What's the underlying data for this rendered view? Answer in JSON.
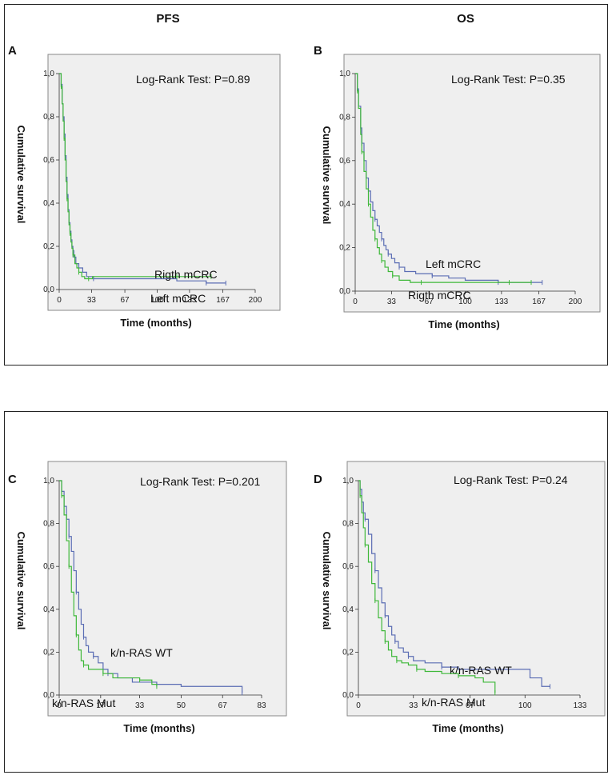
{
  "figure": {
    "panels": [
      "A",
      "B",
      "C",
      "D"
    ]
  },
  "colors": {
    "series_blue": "#5b6db4",
    "series_green": "#3fb83a",
    "plot_background": "#efefef",
    "axis": "#333333"
  },
  "chart_data": [
    {
      "panel": "A",
      "type": "line",
      "title": "PFS",
      "xlabel": "Time (months)",
      "ylabel": "Cumulative survival",
      "xlim": [
        0,
        200
      ],
      "ylim": [
        0,
        1.0
      ],
      "xticks": [
        "0",
        "33",
        "67",
        "100",
        "133",
        "167",
        "200"
      ],
      "xtick_values": [
        0,
        33,
        67,
        100,
        133,
        167,
        200
      ],
      "yticks": [
        "0,0",
        "0,2",
        "0,4",
        "0,6",
        "0,8",
        "1,0"
      ],
      "ytick_values": [
        0,
        0.2,
        0.4,
        0.6,
        0.8,
        1.0
      ],
      "annotation": "Log-Rank Test: P=0.89",
      "series": [
        {
          "name": "Left mCRC",
          "color": "#5b6db4",
          "x": [
            0,
            2,
            3,
            4,
            5,
            6,
            7,
            8,
            9,
            10,
            11,
            12,
            13,
            14,
            15,
            17,
            20,
            24,
            28,
            35,
            60,
            120,
            150,
            170
          ],
          "y": [
            1.0,
            0.95,
            0.86,
            0.8,
            0.72,
            0.62,
            0.52,
            0.44,
            0.37,
            0.31,
            0.27,
            0.23,
            0.2,
            0.18,
            0.15,
            0.12,
            0.1,
            0.08,
            0.06,
            0.05,
            0.05,
            0.04,
            0.03,
            0.03
          ],
          "label": "Left mCRC"
        },
        {
          "name": "Rigth mCRC",
          "color": "#3fb83a",
          "x": [
            0,
            2,
            3,
            4,
            5,
            6,
            7,
            8,
            9,
            10,
            11,
            12,
            13,
            14,
            16,
            18,
            20,
            23,
            26,
            30,
            34,
            60,
            120,
            155
          ],
          "y": [
            1.0,
            0.94,
            0.86,
            0.78,
            0.7,
            0.6,
            0.5,
            0.42,
            0.36,
            0.3,
            0.26,
            0.22,
            0.19,
            0.16,
            0.12,
            0.1,
            0.08,
            0.06,
            0.05,
            0.05,
            0.06,
            0.06,
            0.06,
            0.06
          ],
          "label": "Rigth mCRC"
        }
      ]
    },
    {
      "panel": "B",
      "type": "line",
      "title": "OS",
      "xlabel": "Time (months)",
      "ylabel": "Cumulative survival",
      "xlim": [
        0,
        200
      ],
      "ylim": [
        0,
        1.0
      ],
      "xticks": [
        "0",
        "33",
        "67",
        "100",
        "133",
        "167",
        "200"
      ],
      "xtick_values": [
        0,
        33,
        67,
        100,
        133,
        167,
        200
      ],
      "yticks": [
        "0,0",
        "0,2",
        "0,4",
        "0,6",
        "0,8",
        "1,0"
      ],
      "ytick_values": [
        0,
        0.2,
        0.4,
        0.6,
        0.8,
        1.0
      ],
      "annotation": "Log-Rank Test: P=0.35",
      "series": [
        {
          "name": "Left mCRC",
          "color": "#5b6db4",
          "x": [
            0,
            2,
            3,
            5,
            6,
            8,
            10,
            12,
            14,
            16,
            18,
            20,
            22,
            24,
            26,
            28,
            30,
            33,
            36,
            40,
            45,
            55,
            70,
            85,
            100,
            130,
            150,
            170
          ],
          "y": [
            1.0,
            0.93,
            0.85,
            0.75,
            0.68,
            0.6,
            0.52,
            0.46,
            0.41,
            0.37,
            0.33,
            0.3,
            0.27,
            0.24,
            0.21,
            0.19,
            0.17,
            0.15,
            0.13,
            0.11,
            0.09,
            0.08,
            0.07,
            0.06,
            0.05,
            0.04,
            0.04,
            0.04
          ],
          "label": "Left mCRC"
        },
        {
          "name": "Rigth mCRC",
          "color": "#3fb83a",
          "x": [
            0,
            2,
            3,
            5,
            6,
            8,
            10,
            12,
            14,
            16,
            18,
            20,
            22,
            24,
            27,
            30,
            34,
            40,
            50,
            60,
            80,
            100,
            140,
            160
          ],
          "y": [
            1.0,
            0.92,
            0.84,
            0.72,
            0.64,
            0.55,
            0.47,
            0.4,
            0.34,
            0.28,
            0.24,
            0.2,
            0.17,
            0.14,
            0.11,
            0.09,
            0.07,
            0.05,
            0.04,
            0.04,
            0.04,
            0.04,
            0.04,
            0.04
          ],
          "label": "Rigth mCRC"
        }
      ]
    },
    {
      "panel": "C",
      "type": "line",
      "title": "PFS",
      "xlabel": "Time (months)",
      "ylabel": "Cumulative survival",
      "xlim": [
        0,
        83
      ],
      "ylim": [
        0,
        1.0
      ],
      "xticks": [
        "0",
        "17",
        "33",
        "50",
        "67",
        "83"
      ],
      "xtick_values": [
        0,
        17,
        33,
        50,
        67,
        83
      ],
      "yticks": [
        "0,0",
        "0,2",
        "0,4",
        "0,6",
        "0,8",
        "1,0"
      ],
      "ytick_values": [
        0,
        0.2,
        0.4,
        0.6,
        0.8,
        1.0
      ],
      "annotation": "Log-Rank Test: P=0.201",
      "series": [
        {
          "name": "k/n-RAS WT",
          "color": "#5b6db4",
          "x": [
            0,
            1,
            2,
            3,
            4,
            5,
            6,
            7,
            8,
            9,
            10,
            11,
            12,
            14,
            16,
            18,
            20,
            24,
            30,
            40,
            50,
            60,
            75
          ],
          "y": [
            1.0,
            0.95,
            0.88,
            0.82,
            0.74,
            0.67,
            0.58,
            0.48,
            0.4,
            0.33,
            0.27,
            0.23,
            0.2,
            0.18,
            0.15,
            0.12,
            0.1,
            0.08,
            0.06,
            0.05,
            0.04,
            0.04,
            0.01
          ],
          "label": "k/n-RAS WT"
        },
        {
          "name": "k/n-RAS Mut",
          "color": "#3fb83a",
          "x": [
            0,
            1,
            2,
            3,
            4,
            5,
            6,
            7,
            8,
            9,
            10,
            12,
            14,
            18,
            22,
            27,
            33,
            38,
            40
          ],
          "y": [
            1.0,
            0.93,
            0.84,
            0.72,
            0.6,
            0.48,
            0.37,
            0.28,
            0.21,
            0.16,
            0.14,
            0.12,
            0.12,
            0.1,
            0.08,
            0.08,
            0.07,
            0.05,
            0.04
          ],
          "label": "k/n-RAS Mut"
        }
      ]
    },
    {
      "panel": "D",
      "type": "line",
      "title": "OS",
      "xlabel": "Time (months)",
      "ylabel": "Cumulative survival",
      "xlim": [
        0,
        133
      ],
      "ylim": [
        0,
        1.0
      ],
      "xticks": [
        "0",
        "33",
        "67",
        "100",
        "133"
      ],
      "xtick_values": [
        0,
        33,
        67,
        100,
        133
      ],
      "yticks": [
        "0,0",
        "0,2",
        "0,4",
        "0,6",
        "0,8",
        "1,0"
      ],
      "ytick_values": [
        0,
        0.2,
        0.4,
        0.6,
        0.8,
        1.0
      ],
      "annotation": "Log-Rank Test: P=0.24",
      "series": [
        {
          "name": "k/n-RAS WT",
          "color": "#5b6db4",
          "x": [
            0,
            1,
            2,
            3,
            4,
            6,
            8,
            10,
            12,
            14,
            16,
            18,
            20,
            22,
            24,
            27,
            30,
            33,
            40,
            50,
            60,
            70,
            90,
            103,
            110,
            115
          ],
          "y": [
            1.0,
            0.96,
            0.9,
            0.85,
            0.82,
            0.75,
            0.66,
            0.58,
            0.5,
            0.43,
            0.37,
            0.32,
            0.28,
            0.25,
            0.22,
            0.2,
            0.18,
            0.16,
            0.15,
            0.13,
            0.12,
            0.12,
            0.12,
            0.08,
            0.04,
            0.04
          ],
          "label": "k/n-RAS WT"
        },
        {
          "name": "k/n-RAS Mut",
          "color": "#3fb83a",
          "x": [
            0,
            1,
            2,
            3,
            4,
            6,
            8,
            10,
            12,
            14,
            16,
            18,
            20,
            23,
            26,
            30,
            35,
            40,
            50,
            60,
            70,
            75,
            82
          ],
          "y": [
            1.0,
            0.93,
            0.85,
            0.78,
            0.7,
            0.62,
            0.52,
            0.44,
            0.36,
            0.3,
            0.25,
            0.21,
            0.18,
            0.16,
            0.15,
            0.14,
            0.12,
            0.11,
            0.1,
            0.09,
            0.08,
            0.06,
            0.01
          ],
          "label": "k/n-RAS Mut"
        }
      ]
    }
  ]
}
